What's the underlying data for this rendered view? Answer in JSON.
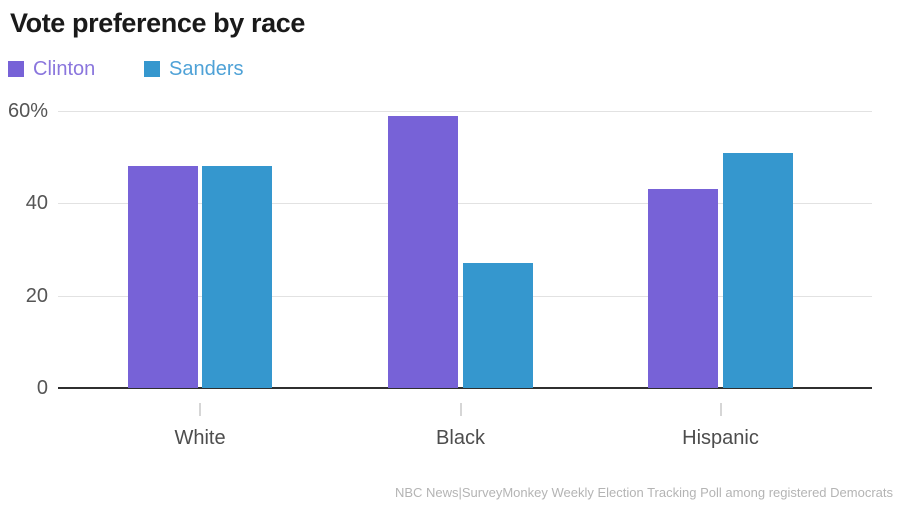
{
  "title": "Vote preference by race",
  "legend": {
    "items": [
      {
        "label": "Clinton",
        "color": "#7762d7",
        "text_color": "#8a76dd"
      },
      {
        "label": "Sanders",
        "color": "#3597ce",
        "text_color": "#4fa2d7"
      }
    ]
  },
  "footnote": "NBC News|SurveyMonkey Weekly Election Tracking Poll among registered Democrats",
  "chart_data": {
    "type": "bar",
    "title": "Vote preference by race",
    "categories": [
      "White",
      "Black",
      "Hispanic"
    ],
    "series": [
      {
        "name": "Clinton",
        "color": "#7762d7",
        "values": [
          48,
          59,
          43
        ]
      },
      {
        "name": "Sanders",
        "color": "#3597ce",
        "values": [
          48,
          27,
          51
        ]
      }
    ],
    "ylim": [
      0,
      60
    ],
    "yticks": [
      {
        "value": 0,
        "label": "0"
      },
      {
        "value": 20,
        "label": "20"
      },
      {
        "value": 40,
        "label": "40"
      },
      {
        "value": 60,
        "label": "60%"
      }
    ],
    "grid": true,
    "legend_position": "top-left",
    "source": "NBC News|SurveyMonkey Weekly Election Tracking Poll among registered Democrats"
  },
  "colors": {
    "title": "#1a1a1a",
    "axis_label": "#555555",
    "gridline": "#e2e2e2",
    "zero_axis": "#2f2f2f",
    "tick": "#d6d6d6",
    "category_label": "#4d4d4d",
    "footnote": "#b4b4b4",
    "background": "#ffffff"
  }
}
